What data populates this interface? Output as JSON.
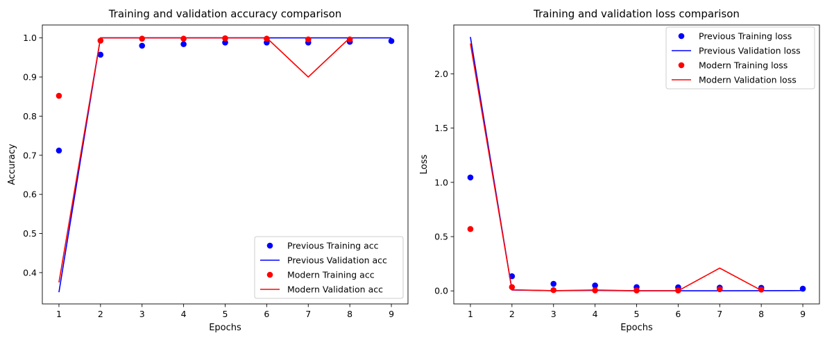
{
  "chart_data": [
    {
      "type": "line",
      "title": "Training and validation accuracy comparison",
      "xlabel": "Epochs",
      "ylabel": "Accuracy",
      "xlim": [
        0.6,
        9.4
      ],
      "ylim": [
        0.32,
        1.033
      ],
      "xticks": [
        1,
        2,
        3,
        4,
        5,
        6,
        7,
        8,
        9
      ],
      "yticks": [
        0.4,
        0.5,
        0.6,
        0.7,
        0.8,
        0.9,
        1.0
      ],
      "ytick_labels": [
        "0.4",
        "0.5",
        "0.6",
        "0.7",
        "0.8",
        "0.9",
        "1.0"
      ],
      "legend_position": "lower-right",
      "series": [
        {
          "name": "Previous Training acc",
          "kind": "scatter",
          "color": "#0000ff",
          "x": [
            1,
            2,
            3,
            4,
            5,
            6,
            7,
            8,
            9
          ],
          "y": [
            0.712,
            0.957,
            0.98,
            0.984,
            0.988,
            0.988,
            0.988,
            0.99,
            0.992
          ]
        },
        {
          "name": "Previous Validation acc",
          "kind": "line",
          "color": "#0000ff",
          "x": [
            1,
            2,
            3,
            4,
            5,
            6,
            7,
            8,
            9
          ],
          "y": [
            0.35,
            1.0,
            1.0,
            1.0,
            1.0,
            1.0,
            1.0,
            1.0,
            1.0
          ]
        },
        {
          "name": "Modern Training acc",
          "kind": "scatter",
          "color": "#ff0000",
          "x": [
            1,
            2,
            3,
            4,
            5,
            6,
            7,
            8
          ],
          "y": [
            0.852,
            0.993,
            0.998,
            0.998,
            0.999,
            0.998,
            0.996,
            0.996
          ]
        },
        {
          "name": "Modern Validation acc",
          "kind": "line",
          "color": "#ff0000",
          "x": [
            1,
            2,
            3,
            4,
            5,
            6,
            7,
            8
          ],
          "y": [
            0.375,
            1.0,
            1.0,
            1.0,
            1.0,
            1.0,
            0.9,
            1.0
          ]
        }
      ]
    },
    {
      "type": "line",
      "title": "Training and validation loss comparison",
      "xlabel": "Epochs",
      "ylabel": "Loss",
      "xlim": [
        0.6,
        9.4
      ],
      "ylim": [
        -0.12,
        2.45
      ],
      "xticks": [
        1,
        2,
        3,
        4,
        5,
        6,
        7,
        8,
        9
      ],
      "yticks": [
        0.0,
        0.5,
        1.0,
        1.5,
        2.0
      ],
      "ytick_labels": [
        "0.0",
        "0.5",
        "1.0",
        "1.5",
        "2.0"
      ],
      "legend_position": "upper-right",
      "series": [
        {
          "name": "Previous Training loss",
          "kind": "scatter",
          "color": "#0000ff",
          "x": [
            1,
            2,
            3,
            4,
            5,
            6,
            7,
            8,
            9
          ],
          "y": [
            1.045,
            0.135,
            0.065,
            0.05,
            0.035,
            0.033,
            0.03,
            0.028,
            0.02
          ]
        },
        {
          "name": "Previous Validation loss",
          "kind": "line",
          "color": "#0000ff",
          "x": [
            1,
            2,
            3,
            4,
            5,
            6,
            7,
            8,
            9
          ],
          "y": [
            2.34,
            0.008,
            0.002,
            0.005,
            0.001,
            0.001,
            0.001,
            0.002,
            0.003
          ]
        },
        {
          "name": "Modern Training loss",
          "kind": "scatter",
          "color": "#ff0000",
          "x": [
            1,
            2,
            3,
            4,
            5,
            6,
            7,
            8
          ],
          "y": [
            0.57,
            0.035,
            0.007,
            0.005,
            0.004,
            0.004,
            0.015,
            0.012
          ]
        },
        {
          "name": "Modern Validation loss",
          "kind": "line",
          "color": "#ff0000",
          "x": [
            1,
            2,
            3,
            4,
            5,
            6,
            7,
            8
          ],
          "y": [
            2.28,
            0.01,
            0.002,
            0.008,
            0.001,
            0.001,
            0.21,
            0.005
          ]
        }
      ]
    }
  ]
}
